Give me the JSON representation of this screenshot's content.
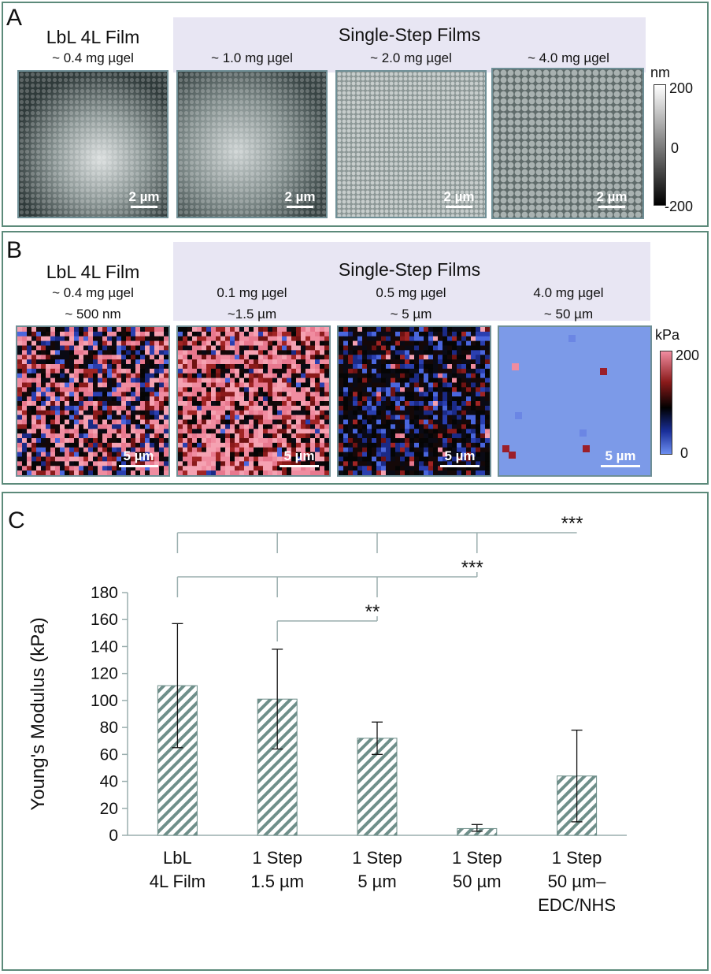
{
  "panel_a": {
    "letter": "A",
    "single_step_title": "Single-Step Films",
    "images": [
      {
        "title": "LbL 4L Film",
        "amount": "~ 0.4 mg µgel",
        "scale": "2 µm"
      },
      {
        "title": "",
        "amount": "~ 1.0 mg µgel",
        "scale": "2 µm"
      },
      {
        "title": "",
        "amount": "~ 2.0 mg µgel",
        "scale": "2 µm"
      },
      {
        "title": "",
        "amount": "~ 4.0 mg µgel",
        "scale": "2 µm"
      }
    ],
    "colorbar": {
      "unit": "nm",
      "max": "200",
      "mid": "0",
      "min": "-200"
    }
  },
  "panel_b": {
    "letter": "B",
    "single_step_title": "Single-Step Films",
    "images": [
      {
        "title": "LbL 4L Film",
        "amount": "~ 0.4 mg µgel",
        "thickness": "~ 500 nm",
        "scale": "5 µm"
      },
      {
        "title": "",
        "amount": "0.1 mg µgel",
        "thickness": "~1.5 µm",
        "scale": "5 µm"
      },
      {
        "title": "",
        "amount": "0.5 mg µgel",
        "thickness": "~ 5 µm",
        "scale": "5 µm"
      },
      {
        "title": "",
        "amount": "4.0 mg µgel",
        "thickness": "~ 50 µm",
        "scale": "5 µm"
      }
    ],
    "colorbar": {
      "unit": "kPa",
      "max": "200",
      "min": "0"
    }
  },
  "panel_c": {
    "letter": "C",
    "chart_data": {
      "type": "bar",
      "categories": [
        "LbL\n4L Film",
        "1 Step\n1.5 µm",
        "1 Step\n5 µm",
        "1 Step\n50 µm",
        "1 Step\n50 µm–\nEDC/NHS"
      ],
      "values": [
        111,
        101,
        72,
        5,
        44
      ],
      "error_low": [
        65,
        64,
        60,
        3,
        10
      ],
      "error_high": [
        157,
        138,
        84,
        8,
        78
      ],
      "ylabel": "Young's Modulus (kPa)",
      "ylim": [
        0,
        180
      ],
      "yticks": [
        "0",
        "20",
        "40",
        "60",
        "80",
        "100",
        "120",
        "140",
        "160",
        "180"
      ],
      "significance": [
        "***",
        "***",
        "**"
      ],
      "colors": {
        "bar_hatch": "#6f8f8a",
        "axis": "#9aaeae"
      }
    }
  }
}
